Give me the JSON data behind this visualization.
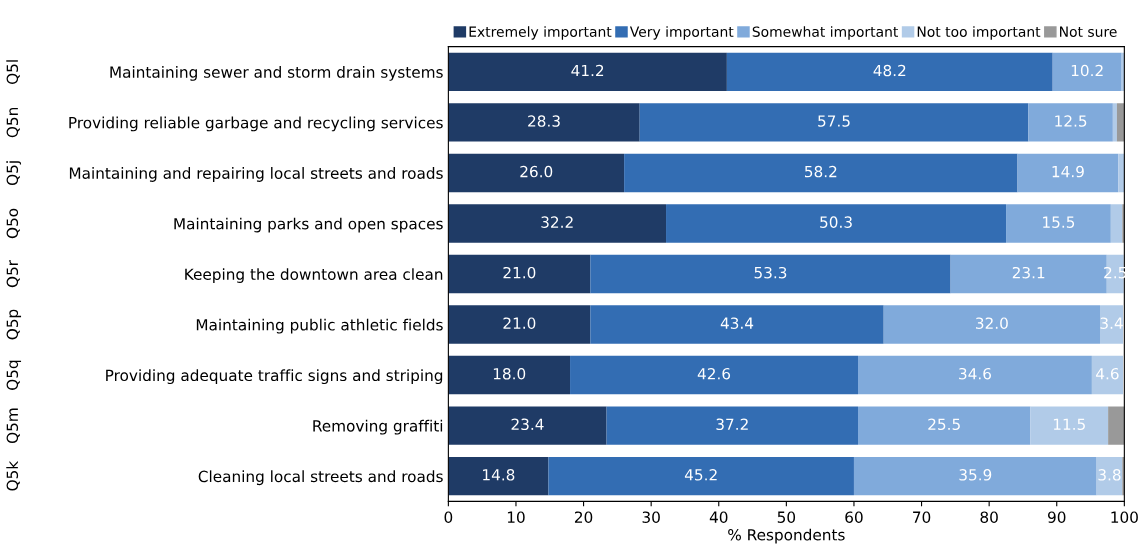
{
  "chart_data": {
    "type": "bar",
    "orientation": "horizontal",
    "stacked": true,
    "categories": [
      "Maintaining sewer and storm drain systems",
      "Providing reliable garbage and recycling services",
      "Maintaining and repairing local streets and roads",
      "Maintaining parks and open spaces",
      "Keeping the downtown area clean",
      "Maintaining public athletic fields",
      "Providing adequate traffic signs and striping",
      "Removing graffiti",
      "Cleaning local streets and roads"
    ],
    "series": [
      {
        "name": "Extremely important",
        "color": "#1f3b66",
        "values": [
          41.2,
          28.3,
          26.0,
          32.2,
          21.0,
          21.0,
          18.0,
          23.4,
          14.8
        ],
        "value_labels": [
          "41.2",
          "28.3",
          "26.0",
          "32.2",
          "21.0",
          "21.0",
          "18.0",
          "23.4",
          "14.8"
        ]
      },
      {
        "name": "Very important",
        "color": "#336db3",
        "values": [
          48.2,
          57.5,
          58.2,
          50.3,
          53.3,
          43.4,
          42.6,
          37.2,
          45.2
        ],
        "value_labels": [
          "48.2",
          "57.5",
          "58.2",
          "50.3",
          "53.3",
          "43.4",
          "42.6",
          "37.2",
          "45.2"
        ]
      },
      {
        "name": "Somewhat important",
        "color": "#80aadb",
        "values": [
          10.2,
          12.5,
          14.9,
          15.5,
          23.1,
          32.0,
          34.6,
          25.5,
          35.9
        ],
        "value_labels": [
          "10.2",
          "12.5",
          "14.9",
          "15.5",
          "23.1",
          "32.0",
          "34.6",
          "25.5",
          "35.9"
        ]
      },
      {
        "name": "Not too important",
        "color": "#b1cbe8",
        "values": [
          0.4,
          0.6,
          0.9,
          1.7,
          2.5,
          3.4,
          4.6,
          11.5,
          3.8
        ],
        "value_labels": [
          null,
          null,
          null,
          null,
          "2.5",
          "3.4",
          "4.6",
          "11.5",
          "3.8"
        ]
      },
      {
        "name": "Not sure",
        "color": "#999999",
        "values": [
          null,
          1.1,
          null,
          0.3,
          null,
          null,
          null,
          2.4,
          0.3
        ],
        "value_labels": [
          null,
          null,
          null,
          null,
          null,
          null,
          null,
          null,
          null
        ]
      }
    ],
    "xlim": [
      0,
      100
    ],
    "xticks": [
      0,
      10,
      20,
      30,
      40,
      50,
      60,
      70,
      80,
      90,
      100
    ],
    "xlabel": "% Respondents",
    "legend": "top",
    "grid": false,
    "annotations": [
      "Q5l",
      "Q5n",
      "Q5j",
      "Q5o",
      "Q5r",
      "Q5p",
      "Q5q",
      "Q5m",
      "Q5k"
    ]
  }
}
